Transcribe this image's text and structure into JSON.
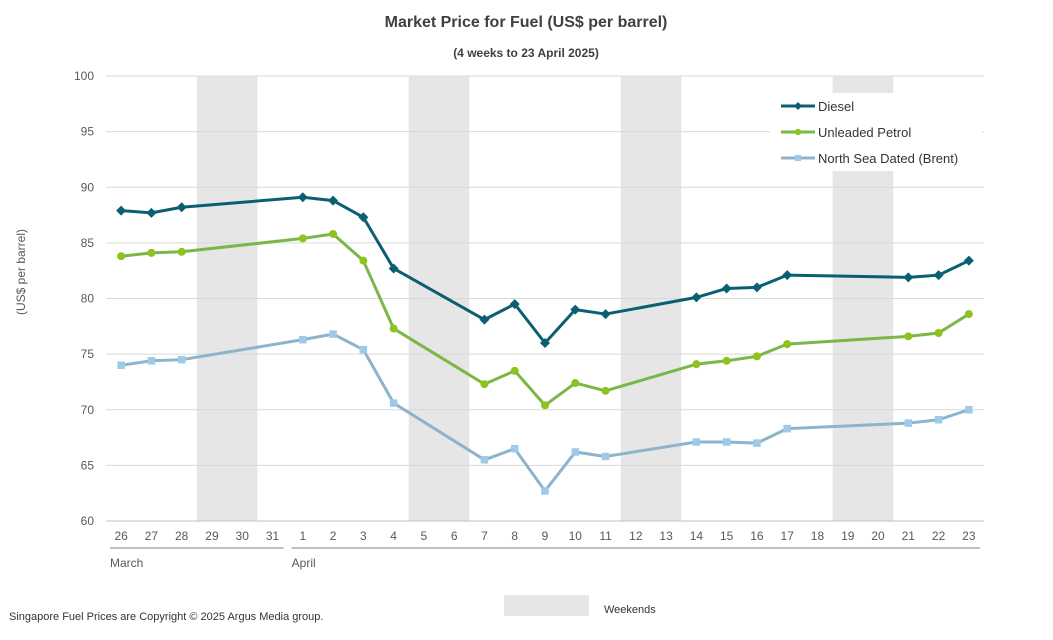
{
  "chart_data": {
    "type": "line",
    "title": "Market Price for Fuel (US$ per barrel)",
    "subtitle": "(4 weeks to 23 April 2025)",
    "ylabel": "(US$ per barrel)",
    "ylim": [
      60,
      100
    ],
    "yticks": [
      60,
      65,
      70,
      75,
      80,
      85,
      90,
      95,
      100
    ],
    "grid": true,
    "legend_placement": "top-right",
    "categories": [
      "26",
      "27",
      "28",
      "29",
      "30",
      "31",
      "1",
      "2",
      "3",
      "4",
      "5",
      "6",
      "7",
      "8",
      "9",
      "10",
      "11",
      "12",
      "13",
      "14",
      "15",
      "16",
      "17",
      "18",
      "19",
      "20",
      "21",
      "22",
      "23"
    ],
    "month_labels": [
      {
        "label": "March",
        "start": "26",
        "end": "31"
      },
      {
        "label": "April",
        "start": "1",
        "end": "23"
      }
    ],
    "weekends": [
      [
        "29",
        "30"
      ],
      [
        "5",
        "6"
      ],
      [
        "12",
        "13"
      ],
      [
        "19",
        "20"
      ]
    ],
    "weekend_legend": "Weekends",
    "series": [
      {
        "name": "Diesel",
        "color": "#0b5f73",
        "marker": "diamond",
        "values": [
          [
            "26",
            87.9
          ],
          [
            "27",
            87.7
          ],
          [
            "28",
            88.2
          ],
          [
            "1",
            89.1
          ],
          [
            "2",
            88.8
          ],
          [
            "3",
            87.3
          ],
          [
            "4",
            82.7
          ],
          [
            "7",
            78.1
          ],
          [
            "8",
            79.5
          ],
          [
            "9",
            76.0
          ],
          [
            "10",
            79.0
          ],
          [
            "11",
            78.6
          ],
          [
            "14",
            80.1
          ],
          [
            "15",
            80.9
          ],
          [
            "16",
            81.0
          ],
          [
            "17",
            82.1
          ],
          [
            "21",
            81.9
          ],
          [
            "22",
            82.1
          ],
          [
            "23",
            83.4
          ]
        ]
      },
      {
        "name": "Unleaded Petrol",
        "color": "#7ab648",
        "marker": "circle",
        "values": [
          [
            "26",
            83.8
          ],
          [
            "27",
            84.1
          ],
          [
            "28",
            84.2
          ],
          [
            "1",
            85.4
          ],
          [
            "2",
            85.8
          ],
          [
            "3",
            83.4
          ],
          [
            "4",
            77.3
          ],
          [
            "7",
            72.3
          ],
          [
            "8",
            73.5
          ],
          [
            "9",
            70.4
          ],
          [
            "10",
            72.4
          ],
          [
            "11",
            71.7
          ],
          [
            "14",
            74.1
          ],
          [
            "15",
            74.4
          ],
          [
            "16",
            74.8
          ],
          [
            "17",
            75.9
          ],
          [
            "21",
            76.6
          ],
          [
            "22",
            76.9
          ],
          [
            "23",
            78.6
          ]
        ]
      },
      {
        "name": "North Sea Dated (Brent)",
        "color": "#8cb4cb",
        "marker": "square",
        "values": [
          [
            "26",
            74.0
          ],
          [
            "27",
            74.4
          ],
          [
            "28",
            74.5
          ],
          [
            "1",
            76.3
          ],
          [
            "2",
            76.8
          ],
          [
            "3",
            75.4
          ],
          [
            "4",
            70.6
          ],
          [
            "7",
            65.5
          ],
          [
            "8",
            66.5
          ],
          [
            "9",
            62.7
          ],
          [
            "10",
            66.2
          ],
          [
            "11",
            65.8
          ],
          [
            "14",
            67.1
          ],
          [
            "15",
            67.1
          ],
          [
            "16",
            67.0
          ],
          [
            "17",
            68.3
          ],
          [
            "21",
            68.8
          ],
          [
            "22",
            69.1
          ],
          [
            "23",
            70.0
          ]
        ]
      }
    ],
    "footer": "Singapore Fuel Prices are Copyright © 2025 Argus Media group."
  }
}
